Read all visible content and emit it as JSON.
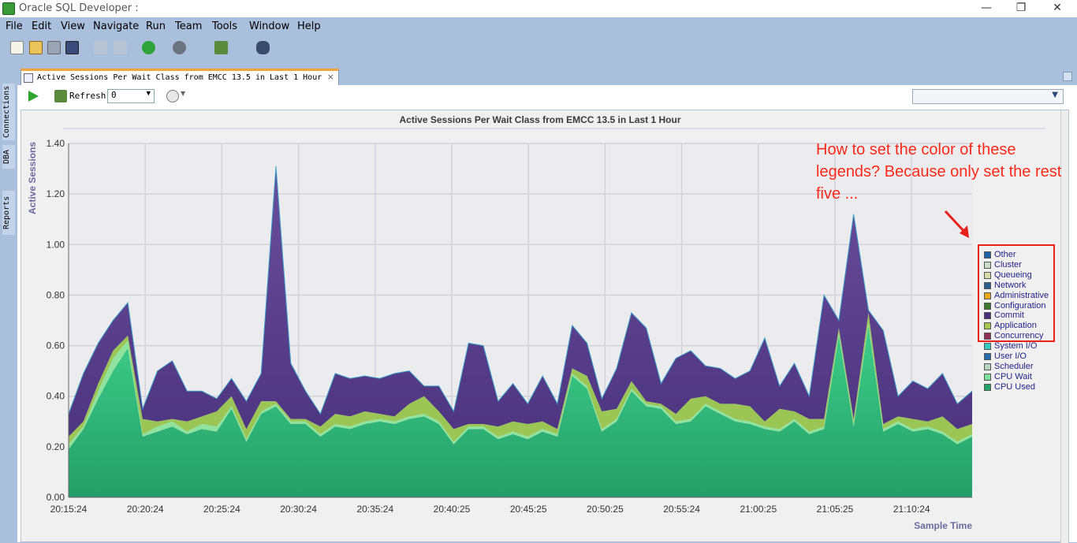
{
  "window": {
    "title": "Oracle SQL Developer :",
    "minimize": "—",
    "restore": "❐",
    "close": "✕"
  },
  "menu": [
    {
      "label": "File"
    },
    {
      "label": "Edit"
    },
    {
      "label": "View"
    },
    {
      "label": "Navigate"
    },
    {
      "label": "Run"
    },
    {
      "label": "Team"
    },
    {
      "label": "Tools"
    },
    {
      "label": "Window"
    },
    {
      "label": "Help"
    }
  ],
  "sidebar": {
    "connections": "Connections",
    "dba": "DBA",
    "reports": "Reports"
  },
  "tab": {
    "label": "Active Sessions Per Wait Class from EMCC 13.5 in Last 1 Hour",
    "close": "×"
  },
  "runbar": {
    "refresh_label": "Refresh:",
    "refresh_value": "0"
  },
  "annotation": {
    "text": "How to set the color of these legends? Because only set the rest five ..."
  },
  "legend": [
    {
      "name": "Other",
      "color": "#1f5fa8"
    },
    {
      "name": "Cluster",
      "color": "#c8dcc8"
    },
    {
      "name": "Queueing",
      "color": "#d8dca8"
    },
    {
      "name": "Network",
      "color": "#2a5f8f"
    },
    {
      "name": "Administrative",
      "color": "#e8a818"
    },
    {
      "name": "Configuration",
      "color": "#3f7a2a"
    },
    {
      "name": "Commit",
      "color": "#4b2e7a"
    },
    {
      "name": "Application",
      "color": "#a4c84a"
    },
    {
      "name": "Concurrency",
      "color": "#8f2f52"
    },
    {
      "name": "System I/O",
      "color": "#33c8c0"
    },
    {
      "name": "User I/O",
      "color": "#2a6aaf"
    },
    {
      "name": "Scheduler",
      "color": "#b8d4c0"
    },
    {
      "name": "CPU Wait",
      "color": "#7fe09a"
    },
    {
      "name": "CPU Used",
      "color": "#23a56a"
    }
  ],
  "chart_data": {
    "type": "area",
    "title": "Active Sessions Per Wait Class from EMCC 13.5 in Last 1 Hour",
    "xlabel": "Sample Time",
    "ylabel": "Active Sessions",
    "ylim": [
      0,
      1.4
    ],
    "y_ticks": [
      "0.00",
      "0.20",
      "0.40",
      "0.60",
      "0.80",
      "1.00",
      "1.20",
      "1.40"
    ],
    "x_ticks": [
      "20:15:24",
      "20:20:24",
      "20:25:24",
      "20:30:24",
      "20:35:24",
      "20:40:25",
      "20:45:25",
      "20:50:25",
      "20:55:24",
      "21:00:25",
      "21:05:25",
      "21:10:24"
    ],
    "grid": true,
    "series": [
      {
        "name": "CPU Used",
        "values": [
          0.19,
          0.27,
          0.39,
          0.5,
          0.59,
          0.24,
          0.26,
          0.28,
          0.25,
          0.27,
          0.26,
          0.35,
          0.22,
          0.33,
          0.36,
          0.29,
          0.29,
          0.24,
          0.28,
          0.27,
          0.29,
          0.3,
          0.29,
          0.31,
          0.32,
          0.29,
          0.21,
          0.27,
          0.27,
          0.23,
          0.25,
          0.23,
          0.26,
          0.24,
          0.48,
          0.43,
          0.26,
          0.3,
          0.42,
          0.36,
          0.35,
          0.29,
          0.3,
          0.36,
          0.33,
          0.3,
          0.29,
          0.27,
          0.26,
          0.3,
          0.25,
          0.27,
          0.64,
          0.28,
          0.68,
          0.26,
          0.29,
          0.26,
          0.27,
          0.25,
          0.21,
          0.24
        ]
      },
      {
        "name": "CPU Wait",
        "values": [
          0.02,
          0.01,
          0.03,
          0.05,
          0.03,
          0.01,
          0.02,
          0.02,
          0.01,
          0.02,
          0.02,
          0.01,
          0.01,
          0.01,
          0.01,
          0.01,
          0.01,
          0.01,
          0.01,
          0.01,
          0.01,
          0.01,
          0.01,
          0.01,
          0.01,
          0.01,
          0.01,
          0.01,
          0.01,
          0.01,
          0.01,
          0.01,
          0.01,
          0.01,
          0.01,
          0.01,
          0.01,
          0.01,
          0.01,
          0.01,
          0.01,
          0.01,
          0.01,
          0.01,
          0.01,
          0.01,
          0.01,
          0.01,
          0.01,
          0.01,
          0.01,
          0.01,
          0.01,
          0.01,
          0.01,
          0.01,
          0.01,
          0.01,
          0.01,
          0.01,
          0.01,
          0.01
        ]
      },
      {
        "name": "Application",
        "values": [
          0.03,
          0.02,
          0.03,
          0.03,
          0.02,
          0.06,
          0.02,
          0.01,
          0.04,
          0.03,
          0.06,
          0.04,
          0.04,
          0.04,
          0.01,
          0.01,
          0.01,
          0.03,
          0.04,
          0.04,
          0.04,
          0.02,
          0.02,
          0.05,
          0.07,
          0.04,
          0.05,
          0.01,
          0.01,
          0.04,
          0.04,
          0.05,
          0.03,
          0.02,
          0.02,
          0.04,
          0.07,
          0.04,
          0.03,
          0.01,
          0.01,
          0.03,
          0.08,
          0.03,
          0.03,
          0.06,
          0.06,
          0.02,
          0.08,
          0.03,
          0.05,
          0.03,
          0.02,
          0.02,
          0.04,
          0.02,
          0.02,
          0.04,
          0.02,
          0.06,
          0.05,
          0.04
        ]
      },
      {
        "name": "Commit",
        "values": [
          0.09,
          0.19,
          0.16,
          0.12,
          0.13,
          0.04,
          0.2,
          0.23,
          0.12,
          0.1,
          0.05,
          0.07,
          0.11,
          0.11,
          0.93,
          0.22,
          0.11,
          0.05,
          0.16,
          0.15,
          0.14,
          0.14,
          0.17,
          0.13,
          0.04,
          0.1,
          0.07,
          0.32,
          0.31,
          0.1,
          0.15,
          0.08,
          0.18,
          0.1,
          0.17,
          0.13,
          0.05,
          0.16,
          0.27,
          0.29,
          0.08,
          0.22,
          0.19,
          0.12,
          0.14,
          0.1,
          0.14,
          0.33,
          0.09,
          0.19,
          0.09,
          0.49,
          0.03,
          0.81,
          0.01,
          0.37,
          0.08,
          0.15,
          0.13,
          0.17,
          0.1,
          0.13
        ]
      }
    ]
  }
}
